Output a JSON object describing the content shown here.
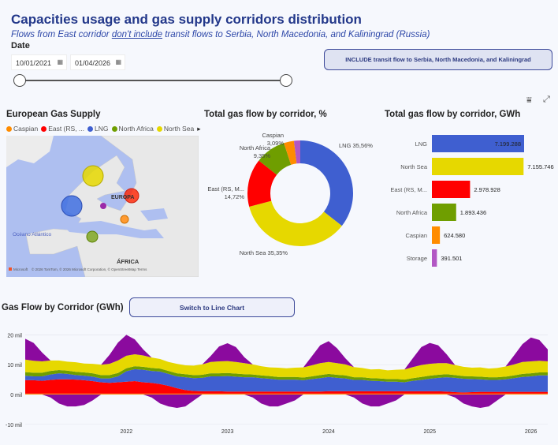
{
  "header": {
    "title": "Capacities usage and gas supply corridors distribution",
    "subtitle_pre": "Flows from East corridor ",
    "subtitle_u": "don't include",
    "subtitle_post": " transit flows to Serbia, North Macedonia, and Kaliningrad (Russia)"
  },
  "date_filter": {
    "label": "Date",
    "start": "10/01/2021",
    "end": "01/04/2026",
    "range_fraction": [
      0,
      1
    ]
  },
  "include_button": "INCLUDE transit flow to Serbia, North Macedonia, and Kaliningrad",
  "colors": {
    "Caspian": "#ff8c00",
    "East (RS, M...": "#ff0000",
    "LNG": "#3f5fd0",
    "North Africa": "#6f9e00",
    "North Sea": "#e6d800",
    "Storage": "#b257c4",
    "Storage_area": "#8b0a9e"
  },
  "map": {
    "title": "European Gas Supply",
    "legend": [
      "Caspian",
      "East (RS, ...",
      "LNG",
      "North Africa",
      "North Sea"
    ],
    "labels": {
      "europe": "EUROPA",
      "ocean": "Océano Atlántico",
      "africa": "ÁFRICA",
      "credits": "© 2026 TomTom, © 2026 Microsoft Corporation, © OpenStreetMap  Terms",
      "brand": "Microsoft"
    }
  },
  "chart_data": [
    {
      "type": "pie",
      "title": "Total gas flow by corridor, %",
      "donut": true,
      "slices": [
        {
          "label": "LNG",
          "value": 35.56,
          "display": "LNG 35,56%"
        },
        {
          "label": "North Sea",
          "value": 35.35,
          "display": "North Sea 35,35%"
        },
        {
          "label": "East (RS, M...",
          "value": 14.72,
          "display": "14,72%"
        },
        {
          "label": "North Africa",
          "value": 9.35,
          "display": "9,35%"
        },
        {
          "label": "Caspian",
          "value": 3.09,
          "display": "3,09%"
        },
        {
          "label": "Storage",
          "value": 1.93
        }
      ]
    },
    {
      "type": "bar",
      "orientation": "horizontal",
      "title": "Total gas flow by corridor, GWh",
      "categories": [
        "LNG",
        "North Sea",
        "East (RS, M...",
        "North Africa",
        "Caspian",
        "Storage"
      ],
      "values": [
        7199288,
        7155746,
        2978928,
        1893436,
        624580,
        391501
      ],
      "labels": [
        "7.199.288",
        "7.155.746",
        "2.978.928",
        "1.893.436",
        "624.580",
        "391.501"
      ]
    },
    {
      "type": "area",
      "stacked": true,
      "title": "Gas Flow by Corridor (GWh)",
      "switch_button": "Switch to Line Chart",
      "x_start": "2021-01",
      "x_step": "month",
      "y_ticks": [
        {
          "v": 20,
          "label": "20 mil"
        },
        {
          "v": 10,
          "label": "10 mil"
        },
        {
          "v": 0,
          "label": "0 mil"
        },
        {
          "v": -10,
          "label": "-10 mil"
        }
      ],
      "ylim": [
        -11,
        24
      ],
      "x_ticks": [
        "2022",
        "2023",
        "2024",
        "2025",
        "2026"
      ],
      "series": [
        {
          "name": "Caspian",
          "values": [
            0.3,
            0.3,
            0.3,
            0.3,
            0.3,
            0.3,
            0.3,
            0.3,
            0.3,
            0.3,
            0.3,
            0.3,
            0.3,
            0.3,
            0.3,
            0.3,
            0.3,
            0.3,
            0.3,
            0.3,
            0.3,
            0.3,
            0.3,
            0.3,
            0.3,
            0.3,
            0.3,
            0.3,
            0.3,
            0.3,
            0.3,
            0.3,
            0.3,
            0.3,
            0.3,
            0.3,
            0.3,
            0.3,
            0.3,
            0.3,
            0.3,
            0.3,
            0.3,
            0.3,
            0.3,
            0.3,
            0.3,
            0.3,
            0.3,
            0.3,
            0.3,
            0.3,
            0.3,
            0.3,
            0.3,
            0.3,
            0.3,
            0.3,
            0.3,
            0.3,
            0.3,
            0.3,
            0.3
          ]
        },
        {
          "name": "East (RS, M...",
          "values": [
            4.5,
            4.5,
            4.3,
            4.6,
            4.8,
            4.8,
            4.7,
            4.5,
            4.2,
            3.8,
            3.6,
            3.8,
            4.0,
            4.2,
            3.8,
            3.6,
            3.2,
            2.6,
            1.8,
            1.2,
            0.9,
            0.8,
            0.8,
            0.8,
            0.7,
            0.7,
            0.7,
            0.7,
            0.7,
            0.7,
            0.7,
            0.7,
            0.7,
            0.7,
            0.7,
            0.7,
            0.8,
            0.8,
            0.8,
            0.8,
            0.8,
            0.8,
            0.8,
            0.8,
            0.8,
            0.8,
            0.8,
            0.8,
            0.8,
            0.8,
            0.7,
            0.5,
            0.4,
            0.5,
            0.6,
            0.6,
            0.6,
            0.6,
            0.6,
            0.6,
            0.6,
            0.6,
            0.6
          ]
        },
        {
          "name": "LNG",
          "values": [
            1.5,
            1.3,
            1.5,
            1.8,
            2.0,
            1.8,
            1.5,
            1.5,
            1.5,
            1.3,
            1.5,
            2.0,
            3.5,
            4.0,
            4.2,
            4.0,
            4.2,
            4.0,
            4.0,
            4.3,
            4.3,
            4.5,
            5.0,
            5.0,
            5.2,
            5.0,
            4.8,
            4.8,
            4.5,
            4.3,
            4.0,
            4.0,
            4.0,
            3.8,
            4.2,
            4.5,
            4.8,
            4.5,
            4.3,
            3.8,
            3.8,
            3.5,
            3.4,
            3.2,
            3.2,
            3.0,
            3.5,
            3.8,
            4.2,
            4.5,
            4.8,
            4.8,
            4.6,
            4.4,
            4.2,
            4.0,
            4.0,
            4.2,
            4.6,
            5.0,
            5.2,
            5.5,
            5.5
          ]
        },
        {
          "name": "North Africa",
          "values": [
            1.2,
            1.2,
            1.2,
            1.2,
            1.1,
            1.1,
            1.1,
            1.1,
            1.1,
            1.1,
            1.1,
            1.1,
            1.0,
            1.0,
            1.0,
            1.0,
            1.0,
            1.0,
            1.0,
            1.0,
            1.0,
            1.0,
            1.0,
            1.0,
            1.0,
            1.0,
            1.0,
            0.9,
            0.9,
            0.9,
            0.9,
            0.9,
            0.9,
            0.9,
            0.9,
            1.0,
            1.0,
            1.0,
            1.0,
            0.9,
            0.9,
            0.9,
            0.9,
            0.9,
            0.9,
            0.9,
            0.9,
            1.0,
            1.0,
            1.0,
            1.0,
            0.9,
            0.9,
            0.9,
            0.9,
            0.9,
            0.9,
            0.9,
            0.9,
            1.0,
            1.0,
            1.0,
            1.0
          ]
        },
        {
          "name": "North Sea",
          "values": [
            4.2,
            4.0,
            3.8,
            3.5,
            3.2,
            3.0,
            3.2,
            3.0,
            3.2,
            3.5,
            3.8,
            4.2,
            4.2,
            4.0,
            3.8,
            3.5,
            3.2,
            3.0,
            3.2,
            3.0,
            3.2,
            3.5,
            3.8,
            4.0,
            4.0,
            3.9,
            3.7,
            3.4,
            3.1,
            2.9,
            3.1,
            2.9,
            3.1,
            3.4,
            3.7,
            4.0,
            4.0,
            3.9,
            3.7,
            3.4,
            3.1,
            2.9,
            3.1,
            2.9,
            3.1,
            3.4,
            3.7,
            4.0,
            4.0,
            3.9,
            3.7,
            3.4,
            3.1,
            2.9,
            3.1,
            2.9,
            3.1,
            3.4,
            3.7,
            4.0,
            4.0,
            3.9,
            3.7
          ]
        },
        {
          "name": "Storage",
          "values": [
            7,
            6,
            3,
            -1,
            -3,
            -4,
            -4,
            -3.5,
            -2,
            0,
            3,
            6,
            7,
            5,
            2,
            -1,
            -3,
            -4,
            -4.5,
            -4,
            -2,
            0,
            2,
            5,
            6,
            5,
            2,
            -1,
            -3,
            -4,
            -4,
            -3,
            -2,
            0,
            3,
            6,
            7,
            5,
            2,
            -1,
            -3,
            -4,
            -4,
            -3,
            -2,
            0,
            3,
            6,
            7,
            6,
            3,
            -1,
            -3,
            -4,
            -4.5,
            -4,
            -2,
            0,
            3,
            6,
            8,
            7,
            4
          ]
        }
      ]
    }
  ],
  "toolbar_icons": [
    "filter-icon",
    "focus-mode-icon"
  ]
}
